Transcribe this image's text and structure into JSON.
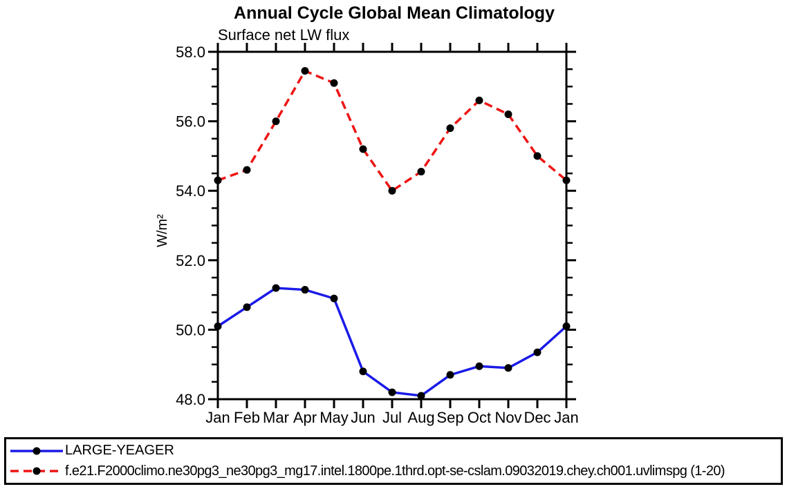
{
  "chart_data": {
    "type": "line",
    "title": "Annual Cycle Global Mean Climatology",
    "subtitle": "Surface net LW flux",
    "ylabel": "W/m²",
    "xlabel": "",
    "categories": [
      "Jan",
      "Feb",
      "Mar",
      "Apr",
      "May",
      "Jun",
      "Jul",
      "Aug",
      "Sep",
      "Oct",
      "Nov",
      "Dec",
      "Jan"
    ],
    "ylim": [
      48.0,
      58.0
    ],
    "yticks_major": [
      48.0,
      50.0,
      52.0,
      54.0,
      56.0,
      58.0
    ],
    "ytick_labels": [
      "48.0",
      "50.0",
      "52.0",
      "54.0",
      "56.0",
      "58.0"
    ],
    "ytick_minor_interval": 0.5,
    "grid": false,
    "legend_position": "bottom-left-boxed",
    "axis_color": "#000000",
    "marker_shape": "filled-circle",
    "series": [
      {
        "name": "LARGE-YEAGER",
        "color": "#1a1ae8",
        "line_style": "solid",
        "marker_color": "#000000",
        "values": [
          50.1,
          50.65,
          51.2,
          51.15,
          50.9,
          48.8,
          48.2,
          48.1,
          48.7,
          48.95,
          48.9,
          49.35,
          50.1
        ]
      },
      {
        "name": "f.e21.F2000climo.ne30pg3_ne30pg3_mg17.intel.1800pe.1thrd.opt-se-cslam.09032019.chey.ch001.uvlimspg (1-20)",
        "color": "#ed1515",
        "line_style": "dashed",
        "marker_color": "#000000",
        "values": [
          54.3,
          54.6,
          56.0,
          57.45,
          57.1,
          55.2,
          54.0,
          54.55,
          55.8,
          56.6,
          56.2,
          55.0,
          54.3
        ]
      }
    ]
  }
}
